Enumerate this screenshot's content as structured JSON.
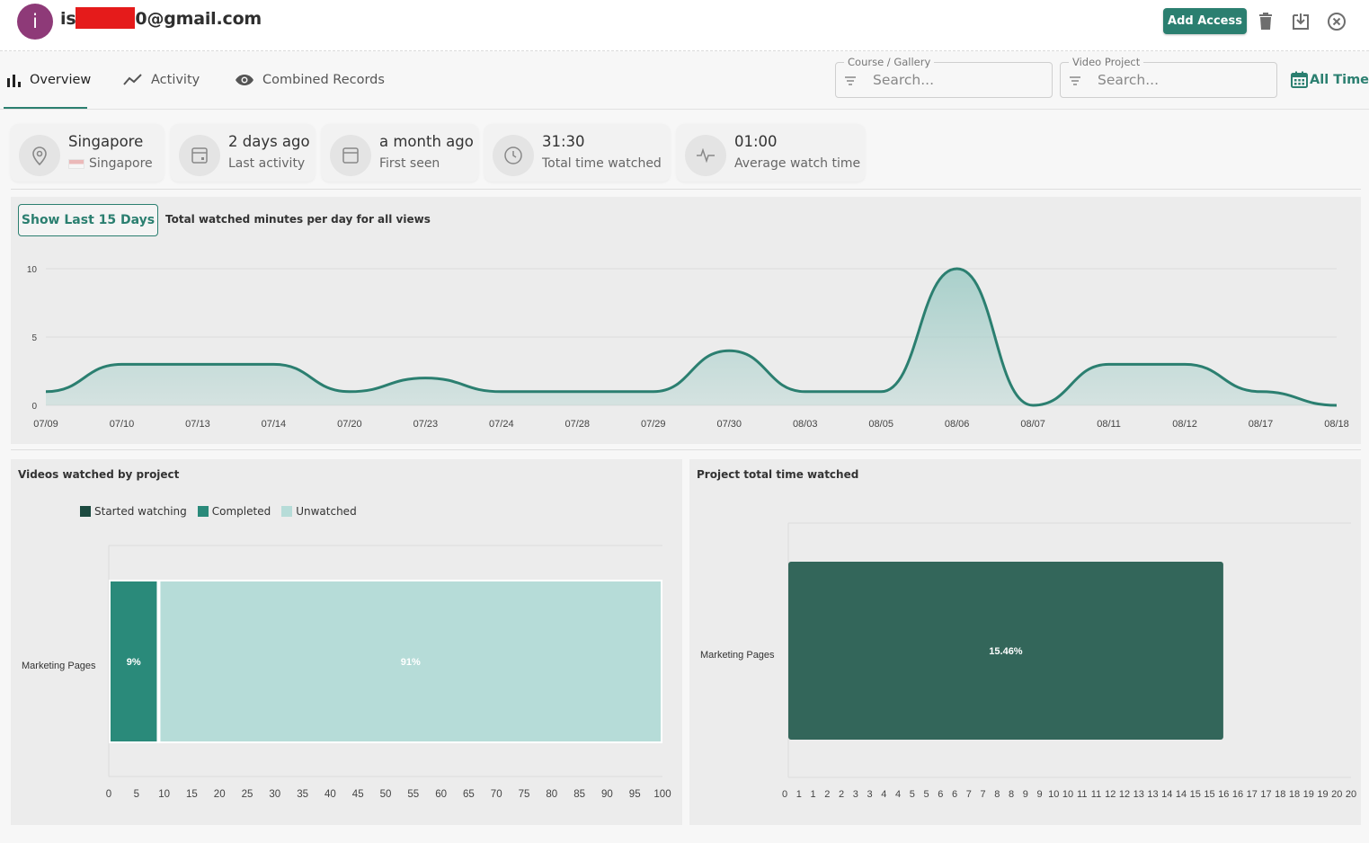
{
  "header": {
    "avatar_letter": "i",
    "email_prefix": "is",
    "email_suffix": "0@gmail.com",
    "add_access_label": "Add Access",
    "icons": [
      "trash-icon",
      "download-icon",
      "close-icon"
    ]
  },
  "tabs": [
    {
      "label": "Overview",
      "icon": "bar-chart-icon",
      "active": true
    },
    {
      "label": "Activity",
      "icon": "trend-line-icon",
      "active": false
    },
    {
      "label": "Combined Records",
      "icon": "eye-icon",
      "active": false
    }
  ],
  "filters": {
    "course": {
      "legend": "Course / Gallery",
      "placeholder": "Search..."
    },
    "project": {
      "legend": "Video Project",
      "placeholder": "Search..."
    },
    "range_label": "All Time"
  },
  "stats": [
    {
      "title": "Singapore",
      "sub": "Singapore",
      "icon": "location-pin-icon"
    },
    {
      "title": "2 days ago",
      "sub": "Last activity",
      "icon": "calendar-icon"
    },
    {
      "title": "a month ago",
      "sub": "First seen",
      "icon": "calendar-icon"
    },
    {
      "title": "31:30",
      "sub": "Total time watched",
      "icon": "clock-icon"
    },
    {
      "title": "01:00",
      "sub": "Average watch time",
      "icon": "pulse-icon"
    }
  ],
  "line_panel": {
    "button_label": "Show Last 15 Days",
    "caption": "Total watched minutes per day for all views"
  },
  "projects_panel": {
    "title": "Videos watched by project",
    "legend": [
      "Started watching",
      "Completed",
      "Unwatched"
    ]
  },
  "time_panel": {
    "title": "Project total time watched"
  },
  "colors": {
    "accent": "#2b7f70",
    "started": "#1c4a40",
    "completed": "#2a8a7a",
    "unwatched": "#b6dcd8",
    "time_bar": "#33665a",
    "area_fill": "#a9d0cb"
  },
  "chart_data": [
    {
      "type": "area",
      "title": "Total watched minutes per day for all views",
      "categories": [
        "07/09",
        "07/10",
        "07/13",
        "07/14",
        "07/20",
        "07/23",
        "07/24",
        "07/28",
        "07/29",
        "07/30",
        "08/03",
        "08/05",
        "08/06",
        "08/07",
        "08/11",
        "08/12",
        "08/17",
        "08/18"
      ],
      "values": [
        1,
        3,
        3,
        3,
        1,
        2,
        1,
        1,
        1,
        4,
        1,
        1,
        10,
        0,
        3,
        3,
        1,
        0
      ],
      "ylim": [
        0,
        10
      ],
      "yticks": [
        0,
        5,
        10
      ],
      "grid": true
    },
    {
      "type": "bar",
      "orientation": "horizontal",
      "stacked": true,
      "title": "Videos watched by project",
      "categories": [
        "Marketing Pages"
      ],
      "series": [
        {
          "name": "Started watching",
          "values": [
            0
          ]
        },
        {
          "name": "Completed",
          "values": [
            9
          ]
        },
        {
          "name": "Unwatched",
          "values": [
            91
          ]
        }
      ],
      "data_labels": [
        "9%",
        "91%"
      ],
      "xlim": [
        0,
        100
      ],
      "xticks": [
        "0",
        "5",
        "10",
        "15",
        "20",
        "25",
        "30",
        "35",
        "40",
        "45",
        "50",
        "55",
        "60",
        "65",
        "70",
        "75",
        "80",
        "85",
        "90",
        "95",
        "100"
      ]
    },
    {
      "type": "bar",
      "orientation": "horizontal",
      "title": "Project total time watched",
      "categories": [
        "Marketing Pages"
      ],
      "values": [
        15.46
      ],
      "data_labels": [
        "15.46%"
      ],
      "xlim": [
        0,
        20
      ],
      "xticks": [
        "0",
        "1",
        "1",
        "2",
        "2",
        "3",
        "3",
        "4",
        "4",
        "5",
        "5",
        "6",
        "6",
        "7",
        "7",
        "8",
        "8",
        "9",
        "9",
        "10",
        "10",
        "11",
        "11",
        "12",
        "12",
        "13",
        "13",
        "14",
        "14",
        "15",
        "15",
        "16",
        "16",
        "17",
        "17",
        "18",
        "18",
        "19",
        "19",
        "20",
        "20"
      ]
    }
  ]
}
